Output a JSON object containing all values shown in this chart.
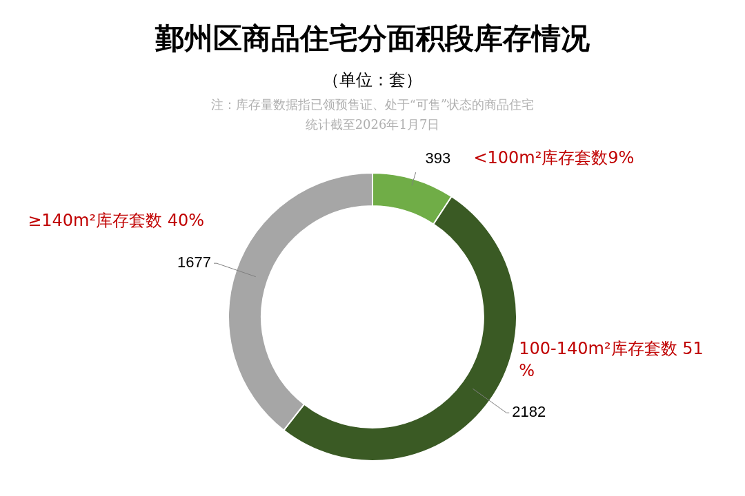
{
  "chart_data": {
    "type": "donut",
    "title": "鄞州区商品住宅分面积段库存情况",
    "subtitle": "（单位：套）",
    "annotations": [
      "注：库存量数据指已领预售证、处于“可售”状态的商品住宅",
      "统计截至2026年1月7日"
    ],
    "categories": [
      "<100m²库存套数9%",
      "100-140m²库存套数 51%",
      "≥140m²库存套数 40%"
    ],
    "values": [
      393,
      2182,
      1677
    ],
    "colors": [
      "#70ad47",
      "#3a5a24",
      "#a6a6a6"
    ],
    "data_labels": true,
    "legend": false
  }
}
